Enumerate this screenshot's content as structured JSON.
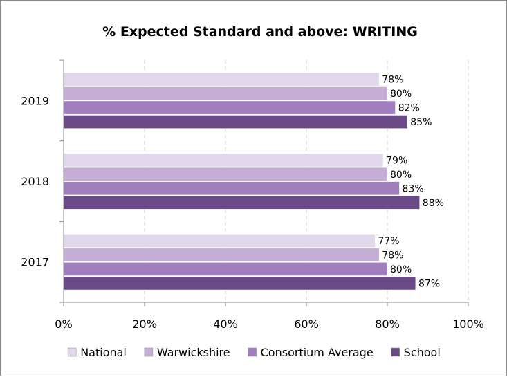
{
  "chart_data": {
    "type": "bar",
    "orientation": "horizontal",
    "title": "% Expected Standard and above: WRITING",
    "xlabel": "",
    "ylabel": "",
    "categories": [
      "2019",
      "2018",
      "2017"
    ],
    "series": [
      {
        "name": "National",
        "values": [
          78,
          79,
          77
        ],
        "color": "#e1d7ea"
      },
      {
        "name": "Warwickshire",
        "values": [
          80,
          80,
          78
        ],
        "color": "#c4aed6"
      },
      {
        "name": "Consortium Average",
        "values": [
          82,
          83,
          80
        ],
        "color": "#a17fbf"
      },
      {
        "name": "School",
        "values": [
          85,
          88,
          87
        ],
        "color": "#6a4a86"
      }
    ],
    "data_labels": [
      [
        "78%",
        "79%",
        "77%"
      ],
      [
        "80%",
        "80%",
        "78%"
      ],
      [
        "82%",
        "83%",
        "80%"
      ],
      [
        "85%",
        "88%",
        "87%"
      ]
    ],
    "xlim": [
      0,
      100
    ],
    "x_ticks": [
      0,
      20,
      40,
      60,
      80,
      100
    ],
    "x_tick_labels": [
      "0%",
      "20%",
      "40%",
      "60%",
      "80%",
      "100%"
    ],
    "grid": "vertical-dashed",
    "legend_position": "bottom"
  }
}
